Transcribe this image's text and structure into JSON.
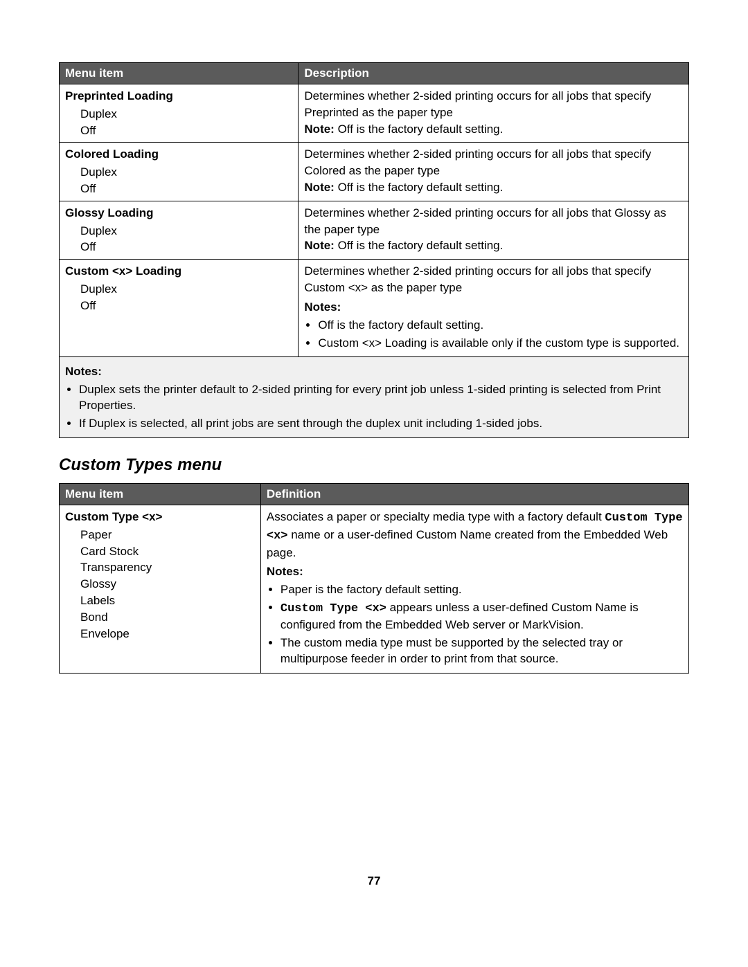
{
  "table1": {
    "headers": {
      "col1": "Menu item",
      "col2": "Description"
    },
    "rows": [
      {
        "title": "Preprinted Loading",
        "opt1": "Duplex",
        "opt2": "Off",
        "desc": "Determines whether 2-sided printing occurs for all jobs that specify Preprinted as the paper type",
        "note_label": "Note:",
        "note_text": " Off is the factory default setting."
      },
      {
        "title": "Colored Loading",
        "opt1": "Duplex",
        "opt2": "Off",
        "desc": "Determines whether 2-sided printing occurs for all jobs that specify Colored as the paper type",
        "note_label": "Note:",
        "note_text": " Off is the factory default setting."
      },
      {
        "title": "Glossy Loading",
        "opt1": "Duplex",
        "opt2": "Off",
        "desc": "Determines whether 2-sided printing occurs for all jobs that Glossy as the paper type",
        "note_label": "Note:",
        "note_text": " Off is the factory default setting."
      },
      {
        "title": "Custom <x> Loading",
        "opt1": "Duplex",
        "opt2": "Off",
        "desc": "Determines whether 2-sided printing occurs for all jobs that specify Custom <x> as the paper type",
        "notes_heading": "Notes:",
        "b1": "Off is the factory default setting.",
        "b2": "Custom <x> Loading is available only if the custom type is supported."
      }
    ],
    "footer": {
      "heading": "Notes:",
      "b1": "Duplex sets the printer default to 2-sided printing for every print job unless 1-sided printing is selected from Print Properties.",
      "b2": "If Duplex is selected, all print jobs are sent through the duplex unit including 1-sided jobs."
    }
  },
  "section_title": "Custom Types menu",
  "table2": {
    "headers": {
      "col1": "Menu item",
      "col2": "Definition"
    },
    "row": {
      "title": "Custom Type <x>",
      "opts": [
        "Paper",
        "Card Stock",
        "Transparency",
        "Glossy",
        "Labels",
        "Bond",
        "Envelope"
      ],
      "desc_pre": "Associates a paper or specialty media type with a factory default ",
      "desc_mono": "Custom Type <x>",
      "desc_post": " name or a user-defined Custom Name created from the Embedded Web page.",
      "notes_heading": "Notes:",
      "b1": "Paper is the factory default setting.",
      "b2_mono": "Custom Type <x>",
      "b2_rest": " appears unless a user-defined Custom Name is configured from the Embedded Web server or MarkVision.",
      "b3": "The custom media type must be supported by the selected tray or multipurpose feeder in order to print from that source."
    }
  },
  "page_number": "77"
}
